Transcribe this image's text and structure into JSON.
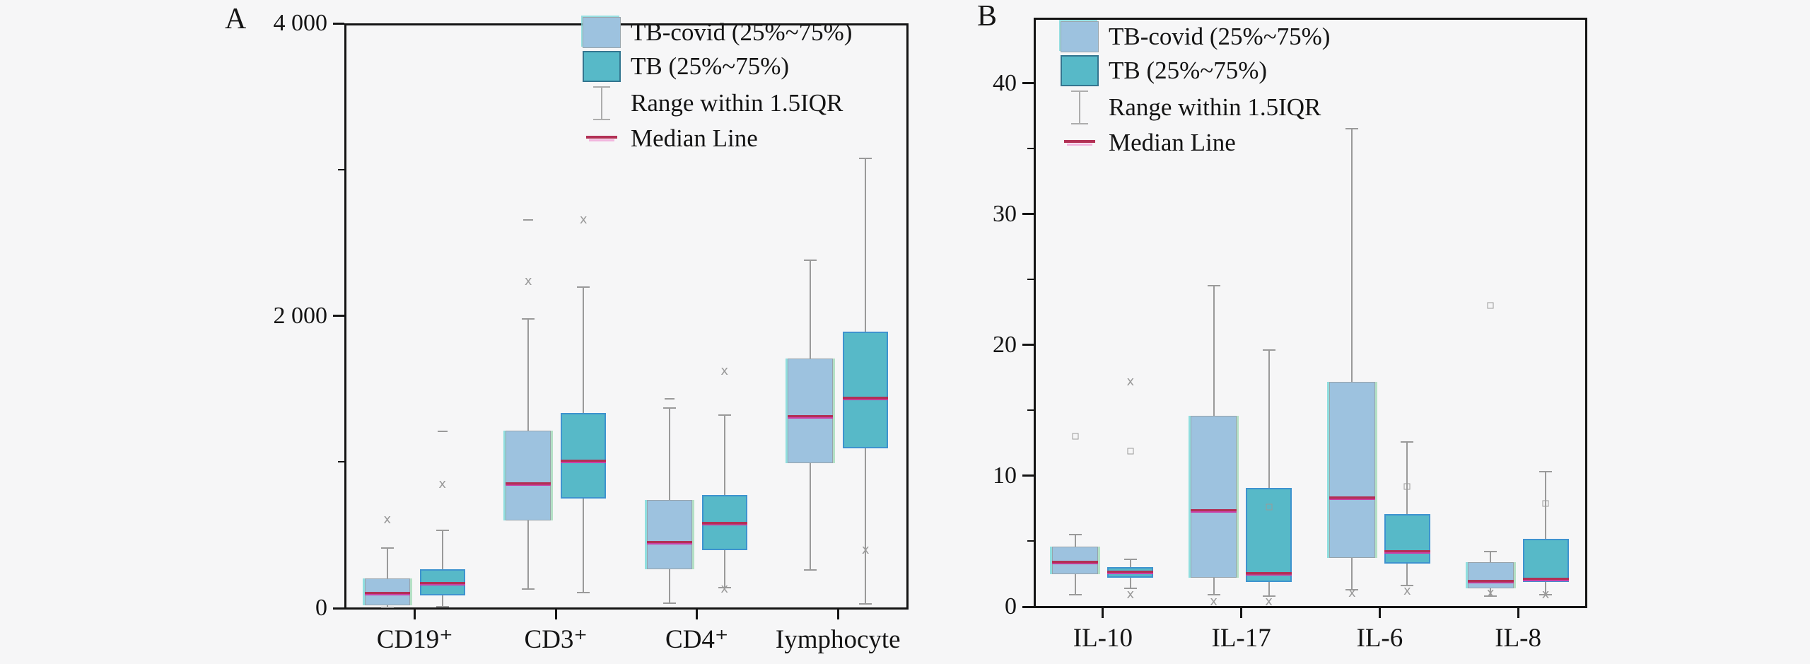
{
  "figure": {
    "background": "#f6f6f7"
  },
  "colors": {
    "tb_covid_fill": "#9dc2df",
    "tb_fill": "#57b9c8",
    "tb_edge_blue": "#3e93cf",
    "median_red": "#b23055",
    "median_magenta": "#cb3fa6",
    "whisker_gray": "#9a9a9a",
    "axis_black": "#141414"
  },
  "legend": {
    "items": [
      {
        "key": "tbcovid",
        "label": "TB-covid (25%~75%)"
      },
      {
        "key": "tb",
        "label": "TB (25%~75%)"
      },
      {
        "key": "range",
        "label": "Range within 1.5IQR"
      },
      {
        "key": "median",
        "label": "Median Line"
      }
    ]
  },
  "chart_data": [
    {
      "type": "box",
      "panel_label": "A",
      "categories": [
        "CD19⁺",
        "CD3⁺",
        "CD4⁺",
        "Iymphocyte"
      ],
      "ylim": [
        0,
        4000
      ],
      "y_ticks_major": [
        {
          "v": 0,
          "label": "0"
        },
        {
          "v": 2000,
          "label": "2 000"
        },
        {
          "v": 4000,
          "label": "4 000"
        }
      ],
      "y_ticks_minor": [
        1000,
        3000
      ],
      "grid": false,
      "legend_position": "top-center-inside",
      "series": [
        {
          "name": "TB-covid",
          "boxes": [
            {
              "category": "CD19⁺",
              "lo": 6,
              "q1": 20,
              "median": 97,
              "q3": 204,
              "hi": 413,
              "outliers": [
                {
                  "v": 607,
                  "m": "x"
                }
              ]
            },
            {
              "category": "CD3⁺",
              "lo": 131,
              "q1": 602,
              "median": 851,
              "q3": 1214,
              "hi": 1976,
              "outliers": [
                {
                  "v": 2655,
                  "m": "dash"
                },
                {
                  "v": 2233,
                  "m": "x"
                }
              ]
            },
            {
              "category": "CD4⁺",
              "lo": 34,
              "q1": 267,
              "median": 447,
              "q3": 738,
              "hi": 1369,
              "outliers": [
                {
                  "v": 1432,
                  "m": "dash"
                }
              ]
            },
            {
              "category": "Iymphocyte",
              "lo": 262,
              "q1": 990,
              "median": 1306,
              "q3": 1709,
              "hi": 2379,
              "outliers": []
            }
          ]
        },
        {
          "name": "TB",
          "boxes": [
            {
              "category": "CD19⁺",
              "lo": 10,
              "q1": 87,
              "median": 165,
              "q3": 267,
              "hi": 534,
              "outliers": [
                {
                  "v": 1210,
                  "m": "dash"
                },
                {
                  "v": 845,
                  "m": "x"
                }
              ]
            },
            {
              "category": "CD3⁺",
              "lo": 107,
              "q1": 752,
              "median": 1005,
              "q3": 1335,
              "hi": 2194,
              "outliers": [
                {
                  "v": 2655,
                  "m": "x"
                }
              ]
            },
            {
              "category": "CD4⁺",
              "lo": 141,
              "q1": 398,
              "median": 578,
              "q3": 772,
              "hi": 1320,
              "outliers": [
                {
                  "v": 1621,
                  "m": "x"
                },
                {
                  "v": 131,
                  "m": "x"
                }
              ]
            },
            {
              "category": "Iymphocyte",
              "lo": 30,
              "q1": 1092,
              "median": 1432,
              "q3": 1893,
              "hi": 3078,
              "outliers": [
                {
                  "v": 398,
                  "m": "x"
                }
              ]
            }
          ]
        }
      ]
    },
    {
      "type": "box",
      "panel_label": "B",
      "categories": [
        "IL-10",
        "IL-17",
        "IL-6",
        "IL-8"
      ],
      "ylim": [
        0,
        45
      ],
      "y_ticks_major": [
        {
          "v": 0,
          "label": "0"
        },
        {
          "v": 10,
          "label": "10"
        },
        {
          "v": 20,
          "label": "20"
        },
        {
          "v": 30,
          "label": "30"
        },
        {
          "v": 40,
          "label": "40"
        }
      ],
      "y_ticks_minor": [
        5,
        15,
        25,
        35
      ],
      "grid": false,
      "legend_position": "top-left-inside",
      "series": [
        {
          "name": "TB-covid",
          "boxes": [
            {
              "category": "IL-10",
              "lo": 0.9,
              "q1": 2.5,
              "median": 3.4,
              "q3": 4.6,
              "hi": 5.5,
              "outliers": [
                {
                  "v": 13.0,
                  "m": "sq"
                }
              ]
            },
            {
              "category": "IL-17",
              "lo": 0.9,
              "q1": 2.2,
              "median": 7.3,
              "q3": 14.6,
              "hi": 24.5,
              "outliers": [
                {
                  "v": 0.4,
                  "m": "x"
                }
              ]
            },
            {
              "category": "IL-6",
              "lo": 1.3,
              "q1": 3.7,
              "median": 8.3,
              "q3": 17.2,
              "hi": 36.5,
              "outliers": [
                {
                  "v": 1.0,
                  "m": "x"
                }
              ]
            },
            {
              "category": "IL-8",
              "lo": 0.8,
              "q1": 1.4,
              "median": 1.9,
              "q3": 3.4,
              "hi": 4.2,
              "outliers": [
                {
                  "v": 23.0,
                  "m": "sq"
                },
                {
                  "v": 1.0,
                  "m": "x"
                }
              ]
            }
          ]
        },
        {
          "name": "TB",
          "boxes": [
            {
              "category": "IL-10",
              "lo": 1.4,
              "q1": 2.2,
              "median": 2.6,
              "q3": 3.0,
              "hi": 3.6,
              "outliers": [
                {
                  "v": 17.2,
                  "m": "x"
                },
                {
                  "v": 11.9,
                  "m": "sq"
                },
                {
                  "v": 0.9,
                  "m": "x"
                }
              ]
            },
            {
              "category": "IL-17",
              "lo": 0.8,
              "q1": 1.9,
              "median": 2.5,
              "q3": 9.1,
              "hi": 19.6,
              "outliers": [
                {
                  "v": 7.6,
                  "m": "sq"
                },
                {
                  "v": 0.4,
                  "m": "x"
                }
              ]
            },
            {
              "category": "IL-6",
              "lo": 1.6,
              "q1": 3.3,
              "median": 4.2,
              "q3": 7.1,
              "hi": 12.6,
              "outliers": [
                {
                  "v": 9.2,
                  "m": "sq"
                },
                {
                  "v": 1.2,
                  "m": "x"
                }
              ]
            },
            {
              "category": "IL-8",
              "lo": 0.9,
              "q1": 1.9,
              "median": 2.1,
              "q3": 5.2,
              "hi": 10.3,
              "outliers": [
                {
                  "v": 7.9,
                  "m": "sq"
                },
                {
                  "v": 0.9,
                  "m": "x"
                }
              ]
            }
          ]
        }
      ]
    }
  ]
}
